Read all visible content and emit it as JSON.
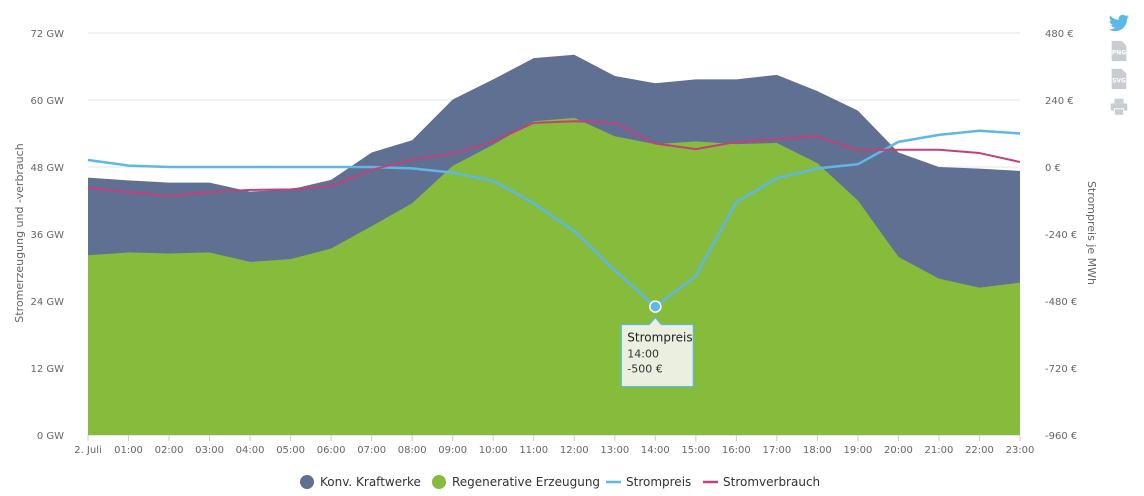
{
  "chart_data": {
    "type": "area",
    "x_labels": [
      "2. Juli",
      "01:00",
      "02:00",
      "03:00",
      "04:00",
      "05:00",
      "06:00",
      "07:00",
      "08:00",
      "09:00",
      "10:00",
      "11:00",
      "12:00",
      "13:00",
      "14:00",
      "15:00",
      "16:00",
      "17:00",
      "18:00",
      "19:00",
      "20:00",
      "21:00",
      "22:00",
      "23:00"
    ],
    "yaxis_left": {
      "title": "Stromerzeugung und -verbrauch",
      "ticks": [
        "0 GW",
        "12 GW",
        "24 GW",
        "36 GW",
        "48 GW",
        "60 GW",
        "72 GW"
      ],
      "min": 0,
      "max": 72
    },
    "yaxis_right": {
      "title": "Strompreis je MWh",
      "ticks": [
        "-960 €",
        "-720 €",
        "-480 €",
        "-240 €",
        "0 €",
        "240 €",
        "480 €"
      ],
      "min": -960,
      "max": 480
    },
    "series": [
      {
        "name": "Konv. Kraftwerke",
        "kind": "area",
        "color": "#5f7092",
        "values": [
          13.9,
          12.9,
          12.7,
          12.5,
          12.6,
          12.5,
          12.3,
          13.2,
          11.3,
          11.9,
          11.7,
          11.3,
          11.3,
          10.8,
          10.9,
          11.1,
          11.6,
          12.2,
          12.9,
          16.1,
          18.7,
          20.0,
          21.3,
          20.0
        ]
      },
      {
        "name": "Regenerative Erzeugung",
        "kind": "area",
        "color": "#86bb3b",
        "values": [
          32.2,
          32.7,
          32.5,
          32.7,
          31.0,
          31.5,
          33.4,
          37.4,
          41.5,
          48.2,
          52.0,
          56.2,
          56.8,
          53.5,
          52.1,
          52.6,
          52.1,
          52.3,
          48.7,
          42.0,
          31.9,
          28.0,
          26.4,
          27.3
        ]
      },
      {
        "name": "Strompreis",
        "kind": "line",
        "axis": "right",
        "color": "#5cb8e6",
        "values": [
          25,
          5,
          0,
          0,
          0,
          0,
          0,
          0,
          -5,
          -20,
          -50,
          -130,
          -230,
          -370,
          -500,
          -390,
          -125,
          -40,
          -5,
          10,
          90,
          115,
          130,
          120
        ]
      },
      {
        "name": "Stromverbrauch",
        "kind": "line",
        "axis": "left",
        "color": "#c2407b",
        "values": [
          44.3,
          43.5,
          42.8,
          43.5,
          43.9,
          44.0,
          44.6,
          47.5,
          49.3,
          50.4,
          52.6,
          55.9,
          56.2,
          55.9,
          52.2,
          51.2,
          52.5,
          53.0,
          53.5,
          51.0,
          51.1,
          51.1,
          50.5,
          48.9
        ]
      }
    ],
    "tooltip": {
      "title": "Strompreis",
      "time": "14:00",
      "value": "-500 €",
      "index": 14
    },
    "legend_position": "bottom-center",
    "grid": "horizontal"
  },
  "side_icons": [
    "twitter-icon",
    "png-export-icon",
    "svg-export-icon",
    "print-icon"
  ],
  "icon_labels": {
    "png": "PNG",
    "svg": "SVG"
  }
}
